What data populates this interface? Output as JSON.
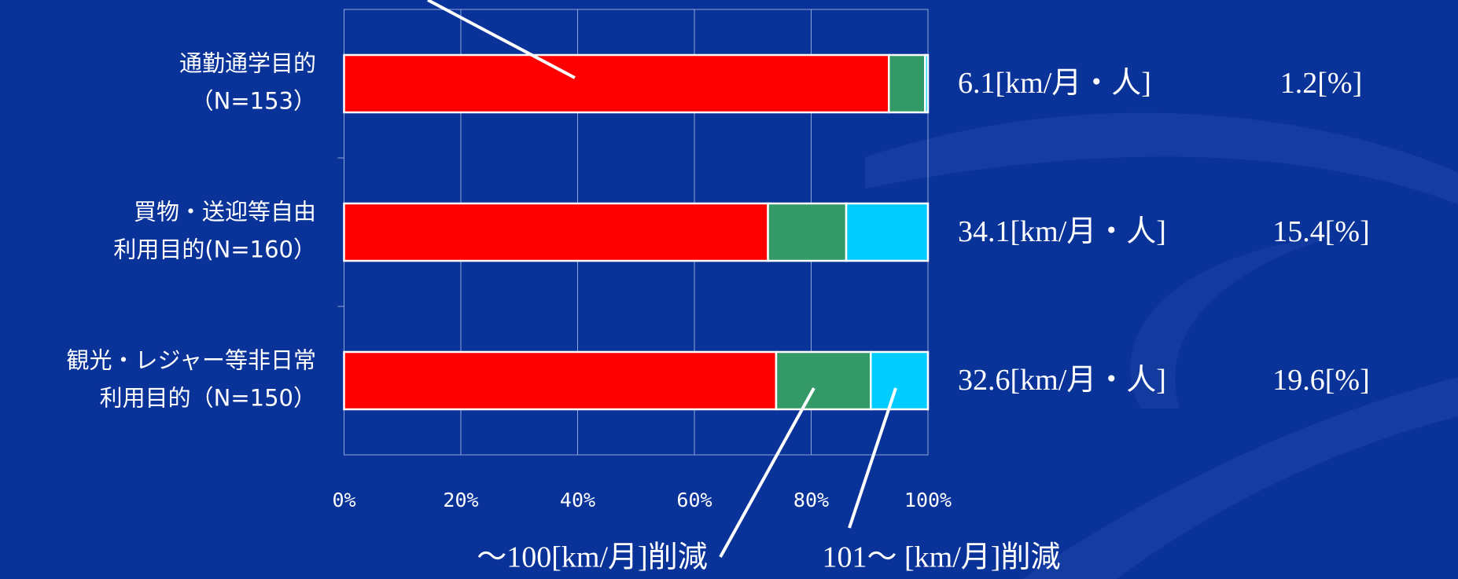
{
  "chart_data": {
    "type": "stacked-bar-horizontal",
    "categories": [
      [
        "通勤通学目的",
        "（N=153）"
      ],
      [
        "買物・送迎等自由",
        "利用目的(N=160）"
      ],
      [
        "観光・レジャー等非日常",
        "利用目的（N=150）"
      ]
    ],
    "series": [
      {
        "color": "#ff0000",
        "values": [
          93.3,
          72.6,
          74.0
        ]
      },
      {
        "name": "～100[km/月]削減",
        "color": "#339966",
        "values": [
          6.2,
          13.4,
          16.2
        ]
      },
      {
        "name": "101～ [km/月]削減",
        "color": "#00ccff",
        "values": [
          0.5,
          14.0,
          9.8
        ]
      }
    ],
    "xlim": [
      0,
      100
    ],
    "xticks": [
      {
        "value": 0,
        "label": "0%"
      },
      {
        "value": 20,
        "label": "20%"
      },
      {
        "value": 40,
        "label": "40%"
      },
      {
        "value": 60,
        "label": "60%"
      },
      {
        "value": 80,
        "label": "80%"
      },
      {
        "value": 100,
        "label": "100%"
      }
    ],
    "grid": true,
    "distance_labels": [
      "6.1[km/月・人]",
      "34.1[km/月・人]",
      "32.6[km/月・人]"
    ],
    "percent_labels": [
      "1.2[%]",
      "15.4[%]",
      "19.6[%]"
    ]
  }
}
